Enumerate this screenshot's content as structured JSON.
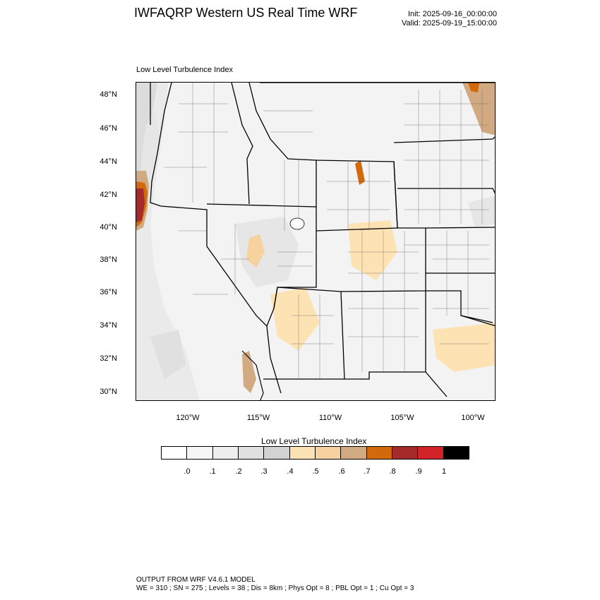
{
  "header": {
    "title": "IWFAQRP Western US Real Time WRF",
    "init": "Init: 2025-09-16_00:00:00",
    "valid": "Valid: 2025-09-19_15:00:00"
  },
  "panel": {
    "title": "Low Level Turbulence Index"
  },
  "map": {
    "lat_ticks": [
      "48°N",
      "46°N",
      "44°N",
      "42°N",
      "40°N",
      "38°N",
      "36°N",
      "34°N",
      "32°N",
      "30°N"
    ],
    "lon_ticks": [
      "120°W",
      "115°W",
      "110°W",
      "105°W",
      "100°W"
    ],
    "background_color": "#f3f3f3",
    "line_color": "#000000"
  },
  "legend": {
    "title": "Low Level Turbulence Index",
    "labels": [
      ".0",
      ".1",
      ".2",
      ".3",
      ".4",
      ".5",
      ".6",
      ".7",
      ".8",
      ".9",
      "1"
    ],
    "colors": [
      "#ffffff",
      "#f6f6f6",
      "#eeeeee",
      "#e0e0e0",
      "#d2d2d2",
      "#fde3b4",
      "#f6d29e",
      "#d2aa82",
      "#d2690a",
      "#a52a2a",
      "#d22328",
      "#000000"
    ]
  },
  "footer": {
    "line1": "OUTPUT FROM WRF V4.6.1 MODEL",
    "line2": "WE = 310 ; SN = 275 ; Levels = 38 ; Dis = 8km ; Phys Opt = 8 ; PBL Opt = 1 ; Cu Opt = 3"
  }
}
